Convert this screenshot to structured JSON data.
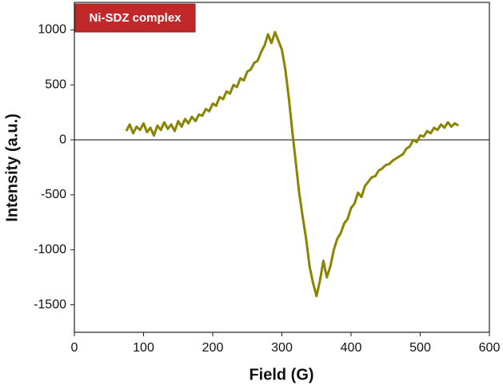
{
  "chart_data": {
    "type": "line",
    "title": "Ni-SDZ complex",
    "x_label": "Field (G)",
    "y_label": "Intensity (a.u.)",
    "xlim": [
      0,
      600
    ],
    "ylim": [
      -1750,
      1250
    ],
    "xticks": [
      0,
      100,
      200,
      300,
      400,
      500,
      600
    ],
    "yticks": [
      1000,
      500,
      0,
      -500,
      -1000,
      -1500
    ],
    "series": [
      {
        "color": "#8a8400",
        "x": [
          75,
          80,
          85,
          90,
          95,
          100,
          105,
          110,
          115,
          120,
          125,
          130,
          135,
          140,
          145,
          150,
          155,
          160,
          165,
          170,
          175,
          180,
          185,
          190,
          195,
          200,
          205,
          210,
          215,
          220,
          225,
          230,
          235,
          240,
          245,
          250,
          255,
          260,
          265,
          270,
          275,
          280,
          285,
          290,
          295,
          300,
          305,
          310,
          315,
          320,
          325,
          330,
          335,
          340,
          345,
          350,
          355,
          360,
          365,
          370,
          375,
          380,
          385,
          390,
          395,
          400,
          405,
          410,
          415,
          420,
          425,
          430,
          435,
          440,
          445,
          450,
          455,
          460,
          465,
          470,
          475,
          480,
          485,
          490,
          495,
          500,
          505,
          510,
          515,
          520,
          525,
          530,
          535,
          540,
          545,
          550,
          555
        ],
        "values": [
          80,
          140,
          60,
          120,
          90,
          150,
          70,
          110,
          40,
          130,
          90,
          160,
          100,
          140,
          80,
          170,
          120,
          190,
          150,
          210,
          170,
          230,
          220,
          280,
          260,
          330,
          310,
          390,
          370,
          440,
          420,
          500,
          480,
          560,
          540,
          620,
          640,
          700,
          720,
          800,
          860,
          960,
          880,
          980,
          900,
          820,
          640,
          380,
          80,
          -200,
          -480,
          -700,
          -900,
          -1150,
          -1300,
          -1420,
          -1280,
          -1100,
          -1250,
          -1150,
          -1000,
          -900,
          -850,
          -760,
          -720,
          -620,
          -580,
          -480,
          -520,
          -420,
          -380,
          -340,
          -330,
          -280,
          -260,
          -230,
          -220,
          -190,
          -170,
          -150,
          -130,
          -80,
          -60,
          0,
          -20,
          40,
          30,
          80,
          60,
          110,
          90,
          140,
          110,
          160,
          120,
          150,
          130
        ]
      }
    ]
  }
}
